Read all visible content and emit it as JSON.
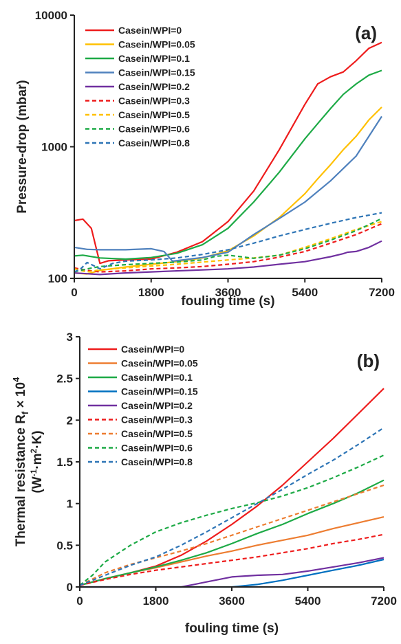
{
  "chart_data": [
    {
      "type": "line",
      "panel_label": "(a)",
      "xlabel": "fouling time (s)",
      "ylabel": "Pressure-drop (mbar)",
      "xlim": [
        0,
        7200
      ],
      "ylim": [
        100,
        10000
      ],
      "yscale": "log",
      "x_ticks": [
        0,
        1800,
        3600,
        5400,
        7200
      ],
      "y_ticks": [
        100,
        1000,
        10000
      ],
      "legend_position": "top-left",
      "series": [
        {
          "name": "Casein/WPI=0",
          "color": "#ee1c1c",
          "dash": "solid",
          "x": [
            0,
            200,
            400,
            600,
            800,
            1200,
            1800,
            2400,
            3000,
            3600,
            4200,
            4800,
            5400,
            5700,
            6000,
            6300,
            6600,
            6900,
            7200
          ],
          "y": [
            275,
            282,
            240,
            130,
            136,
            138,
            140,
            158,
            190,
            270,
            460,
            950,
            2100,
            3000,
            3400,
            3700,
            4500,
            5600,
            6200
          ]
        },
        {
          "name": "Casein/WPI=0.05",
          "color": "#ffc000",
          "dash": "solid",
          "x": [
            0,
            300,
            600,
            1200,
            1800,
            2400,
            3000,
            3600,
            4200,
            4800,
            5400,
            5700,
            6000,
            6300,
            6600,
            6900,
            7200
          ],
          "y": [
            110,
            108,
            115,
            122,
            128,
            134,
            143,
            162,
            210,
            290,
            440,
            570,
            730,
            950,
            1200,
            1600,
            2000
          ]
        },
        {
          "name": "Casein/WPI=0.1",
          "color": "#1daa46",
          "dash": "solid",
          "x": [
            0,
            200,
            600,
            1200,
            1800,
            2400,
            3000,
            3600,
            4200,
            4800,
            5400,
            5700,
            6000,
            6300,
            6600,
            6900,
            7200
          ],
          "y": [
            148,
            150,
            143,
            140,
            144,
            155,
            180,
            240,
            380,
            640,
            1150,
            1500,
            1950,
            2500,
            3000,
            3500,
            3800
          ]
        },
        {
          "name": "Casein/WPI=0.15",
          "color": "#4f81bd",
          "dash": "solid",
          "x": [
            0,
            300,
            600,
            1200,
            1800,
            2100,
            2300,
            2700,
            3000,
            3600,
            4200,
            4800,
            5400,
            6000,
            6600,
            7200
          ],
          "y": [
            172,
            166,
            165,
            165,
            168,
            160,
            135,
            140,
            144,
            158,
            215,
            285,
            380,
            550,
            850,
            1700
          ]
        },
        {
          "name": "Casein/WPI=0.2",
          "color": "#7030a0",
          "dash": "solid",
          "x": [
            0,
            600,
            1200,
            1800,
            2400,
            3000,
            3600,
            4200,
            4800,
            5400,
            6000,
            6300,
            6400,
            6600,
            6900,
            7200
          ],
          "y": [
            110,
            107,
            110,
            112,
            114,
            116,
            118,
            122,
            128,
            134,
            146,
            154,
            158,
            160,
            172,
            192
          ]
        },
        {
          "name": "Casein/WPI=0.3",
          "color": "#ee1c1c",
          "dash": "dash",
          "x": [
            0,
            300,
            600,
            1200,
            1800,
            2400,
            3000,
            3600,
            4200,
            4800,
            5400,
            6000,
            6600,
            7200
          ],
          "y": [
            120,
            115,
            112,
            114,
            118,
            120,
            123,
            128,
            134,
            145,
            160,
            185,
            215,
            260
          ]
        },
        {
          "name": "Casein/WPI=0.5",
          "color": "#ffc000",
          "dash": "dash",
          "x": [
            0,
            300,
            600,
            1200,
            1800,
            2400,
            3000,
            3600,
            4200,
            4800,
            5400,
            6000,
            6600,
            7200
          ],
          "y": [
            118,
            112,
            116,
            120,
            124,
            128,
            133,
            138,
            143,
            150,
            172,
            200,
            235,
            270
          ]
        },
        {
          "name": "Casein/WPI=0.6",
          "color": "#1daa46",
          "dash": "dash",
          "x": [
            0,
            300,
            600,
            1200,
            1800,
            2400,
            3000,
            3300,
            3600,
            3900,
            4200,
            4800,
            5400,
            6000,
            6600,
            7200
          ],
          "y": [
            112,
            118,
            123,
            127,
            130,
            133,
            138,
            147,
            150,
            146,
            142,
            150,
            168,
            195,
            230,
            285
          ]
        },
        {
          "name": "Casein/WPI=0.8",
          "color": "#2e75b6",
          "dash": "dash",
          "x": [
            0,
            150,
            300,
            450,
            600,
            900,
            1200,
            1800,
            2400,
            3000,
            3600,
            4200,
            4800,
            5400,
            6000,
            6600,
            7200
          ],
          "y": [
            112,
            118,
            132,
            125,
            118,
            130,
            135,
            138,
            143,
            152,
            165,
            185,
            210,
            235,
            262,
            290,
            315
          ]
        }
      ]
    },
    {
      "type": "line",
      "panel_label": "(b)",
      "xlabel": "fouling time (s)",
      "ylabel": "Thermal resistance R",
      "ylabel_sub": "f",
      "ylabel_mult": " × 10",
      "ylabel_sup": "4",
      "ylabel_units": "(W·m·K)",
      "ylabel_unit_parts": [
        "(W",
        "-1",
        "·m",
        "2",
        "·K)"
      ],
      "xlim": [
        0,
        7200
      ],
      "ylim": [
        0,
        3
      ],
      "yscale": "linear",
      "x_ticks": [
        0,
        1800,
        3600,
        5400,
        7200
      ],
      "y_ticks": [
        "0",
        "0.5",
        "1",
        "1.5",
        "2",
        "2.5",
        "3"
      ],
      "legend_position": "top-left",
      "series": [
        {
          "name": "Casein/WPI=0",
          "color": "#ee1c1c",
          "dash": "solid",
          "x": [
            0,
            600,
            1200,
            1800,
            2400,
            3000,
            3600,
            4200,
            4800,
            5400,
            6000,
            6600,
            7200
          ],
          "y": [
            0.02,
            0.1,
            0.17,
            0.25,
            0.38,
            0.55,
            0.75,
            0.97,
            1.22,
            1.5,
            1.78,
            2.08,
            2.38
          ]
        },
        {
          "name": "Casein/WPI=0.05",
          "color": "#ed7d31",
          "dash": "solid",
          "x": [
            0,
            600,
            1200,
            1800,
            2400,
            3000,
            3600,
            4200,
            4800,
            5400,
            6000,
            6600,
            7200
          ],
          "y": [
            0.02,
            0.1,
            0.17,
            0.23,
            0.3,
            0.37,
            0.43,
            0.5,
            0.56,
            0.62,
            0.7,
            0.77,
            0.84
          ]
        },
        {
          "name": "Casein/WPI=0.1",
          "color": "#1daa46",
          "dash": "solid",
          "x": [
            0,
            600,
            1200,
            1800,
            2400,
            3000,
            3600,
            4200,
            4800,
            5400,
            6000,
            6600,
            7200
          ],
          "y": [
            0.02,
            0.1,
            0.17,
            0.24,
            0.32,
            0.41,
            0.52,
            0.64,
            0.75,
            0.88,
            1.0,
            1.13,
            1.28
          ]
        },
        {
          "name": "Casein/WPI=0.15",
          "color": "#0070c0",
          "dash": "solid",
          "x": [
            0,
            1800,
            3600,
            3800,
            4200,
            4800,
            5400,
            6000,
            6600,
            7200
          ],
          "y": [
            0,
            0,
            0,
            0.01,
            0.03,
            0.08,
            0.14,
            0.2,
            0.26,
            0.33
          ]
        },
        {
          "name": "Casein/WPI=0.2",
          "color": "#7030a0",
          "dash": "solid",
          "x": [
            0,
            1800,
            2400,
            2700,
            3000,
            3600,
            4200,
            4800,
            5400,
            6000,
            6600,
            7200
          ],
          "y": [
            0,
            0,
            0,
            0.03,
            0.06,
            0.12,
            0.14,
            0.15,
            0.19,
            0.24,
            0.29,
            0.35
          ]
        },
        {
          "name": "Casein/WPI=0.3",
          "color": "#ee1c1c",
          "dash": "dash",
          "x": [
            0,
            600,
            1200,
            1800,
            2400,
            3000,
            3600,
            4200,
            4800,
            5400,
            6000,
            6600,
            7200
          ],
          "y": [
            0.02,
            0.09,
            0.15,
            0.2,
            0.24,
            0.28,
            0.32,
            0.36,
            0.41,
            0.46,
            0.52,
            0.57,
            0.63
          ]
        },
        {
          "name": "Casein/WPI=0.5",
          "color": "#ed7d31",
          "dash": "dash",
          "x": [
            0,
            600,
            1200,
            1800,
            2400,
            3000,
            3600,
            4200,
            4800,
            5400,
            6000,
            6600,
            7200
          ],
          "y": [
            0.02,
            0.17,
            0.27,
            0.35,
            0.43,
            0.52,
            0.62,
            0.72,
            0.82,
            0.92,
            1.02,
            1.12,
            1.22
          ]
        },
        {
          "name": "Casein/WPI=0.6",
          "color": "#1daa46",
          "dash": "dash",
          "x": [
            0,
            300,
            600,
            1200,
            1800,
            2400,
            3000,
            3600,
            4200,
            4800,
            5400,
            6000,
            6600,
            7200
          ],
          "y": [
            0.02,
            0.14,
            0.3,
            0.5,
            0.66,
            0.77,
            0.86,
            0.94,
            1.01,
            1.09,
            1.19,
            1.31,
            1.44,
            1.58
          ]
        },
        {
          "name": "Casein/WPI=0.8",
          "color": "#2e75b6",
          "dash": "dash",
          "x": [
            0,
            600,
            1200,
            1800,
            2400,
            3000,
            3600,
            4200,
            4800,
            5400,
            6000,
            6600,
            7200
          ],
          "y": [
            0.02,
            0.14,
            0.26,
            0.36,
            0.5,
            0.66,
            0.83,
            1.0,
            1.17,
            1.35,
            1.52,
            1.71,
            1.91
          ]
        }
      ]
    }
  ]
}
